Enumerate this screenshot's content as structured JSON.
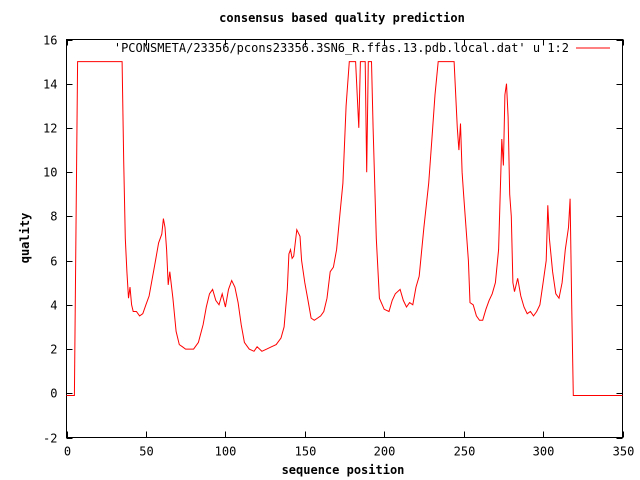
{
  "chart_data": {
    "type": "line",
    "title": "consensus based quality prediction",
    "xlabel": "sequence position",
    "ylabel": "quality",
    "xlim": [
      0,
      350
    ],
    "ylim": [
      -2,
      16
    ],
    "xticks": [
      0,
      50,
      100,
      150,
      200,
      250,
      300,
      350
    ],
    "yticks": [
      -2,
      0,
      2,
      4,
      6,
      8,
      10,
      12,
      14,
      16
    ],
    "grid": false,
    "legend_position": "top-right",
    "series": [
      {
        "name": "'PCONSMETA/23356/pcons23356.3SN6_R.ffas.13.pdb.local.dat' u 1:2",
        "color": "#ff0000",
        "points": [
          [
            0,
            -0.1
          ],
          [
            5,
            -0.1
          ],
          [
            6,
            7.5
          ],
          [
            7,
            15
          ],
          [
            12,
            15
          ],
          [
            20,
            15
          ],
          [
            28,
            15
          ],
          [
            35,
            15
          ],
          [
            36,
            10.5
          ],
          [
            37,
            7
          ],
          [
            38,
            5.5
          ],
          [
            39,
            4.3
          ],
          [
            40,
            4.8
          ],
          [
            41,
            4.0
          ],
          [
            42,
            3.7
          ],
          [
            44,
            3.7
          ],
          [
            46,
            3.5
          ],
          [
            48,
            3.6
          ],
          [
            50,
            4.0
          ],
          [
            52,
            4.4
          ],
          [
            54,
            5.2
          ],
          [
            56,
            6.0
          ],
          [
            58,
            6.8
          ],
          [
            60,
            7.2
          ],
          [
            61,
            7.9
          ],
          [
            62,
            7.5
          ],
          [
            63,
            6.5
          ],
          [
            64,
            4.9
          ],
          [
            65,
            5.5
          ],
          [
            67,
            4.3
          ],
          [
            69,
            2.8
          ],
          [
            71,
            2.2
          ],
          [
            73,
            2.1
          ],
          [
            75,
            2.0
          ],
          [
            78,
            2.0
          ],
          [
            80,
            2.0
          ],
          [
            83,
            2.3
          ],
          [
            86,
            3.1
          ],
          [
            88,
            3.9
          ],
          [
            90,
            4.5
          ],
          [
            92,
            4.7
          ],
          [
            94,
            4.2
          ],
          [
            96,
            4.0
          ],
          [
            98,
            4.5
          ],
          [
            100,
            3.9
          ],
          [
            102,
            4.7
          ],
          [
            104,
            5.1
          ],
          [
            106,
            4.8
          ],
          [
            108,
            4.1
          ],
          [
            110,
            3.1
          ],
          [
            112,
            2.3
          ],
          [
            115,
            2.0
          ],
          [
            118,
            1.9
          ],
          [
            120,
            2.1
          ],
          [
            123,
            1.9
          ],
          [
            126,
            2.0
          ],
          [
            129,
            2.1
          ],
          [
            132,
            2.2
          ],
          [
            135,
            2.5
          ],
          [
            137,
            3.0
          ],
          [
            139,
            4.7
          ],
          [
            140,
            6.3
          ],
          [
            141,
            6.5
          ],
          [
            142,
            6.1
          ],
          [
            143,
            6.2
          ],
          [
            145,
            7.4
          ],
          [
            147,
            7.1
          ],
          [
            148,
            6.0
          ],
          [
            150,
            5.0
          ],
          [
            152,
            4.2
          ],
          [
            154,
            3.4
          ],
          [
            156,
            3.3
          ],
          [
            158,
            3.4
          ],
          [
            160,
            3.5
          ],
          [
            162,
            3.7
          ],
          [
            164,
            4.3
          ],
          [
            166,
            5.5
          ],
          [
            168,
            5.7
          ],
          [
            170,
            6.5
          ],
          [
            172,
            8.0
          ],
          [
            174,
            9.5
          ],
          [
            176,
            13.0
          ],
          [
            178,
            15.0
          ],
          [
            182,
            15.0
          ],
          [
            184,
            12.0
          ],
          [
            185,
            15.0
          ],
          [
            188,
            15.0
          ],
          [
            189,
            10.0
          ],
          [
            190,
            15.0
          ],
          [
            192,
            15.0
          ],
          [
            193,
            12.0
          ],
          [
            195,
            7.0
          ],
          [
            197,
            4.3
          ],
          [
            200,
            3.8
          ],
          [
            203,
            3.7
          ],
          [
            205,
            4.2
          ],
          [
            207,
            4.5
          ],
          [
            210,
            4.7
          ],
          [
            212,
            4.2
          ],
          [
            214,
            3.9
          ],
          [
            216,
            4.1
          ],
          [
            218,
            4.0
          ],
          [
            220,
            4.8
          ],
          [
            222,
            5.3
          ],
          [
            225,
            7.5
          ],
          [
            228,
            9.5
          ],
          [
            230,
            11.5
          ],
          [
            232,
            13.5
          ],
          [
            234,
            15.0
          ],
          [
            236,
            15.0
          ],
          [
            240,
            15.0
          ],
          [
            244,
            15.0
          ],
          [
            246,
            12.0
          ],
          [
            247,
            11.0
          ],
          [
            248,
            12.2
          ],
          [
            249,
            10.0
          ],
          [
            250,
            9.0
          ],
          [
            252,
            7.0
          ],
          [
            253,
            6.0
          ],
          [
            254,
            4.1
          ],
          [
            256,
            4.0
          ],
          [
            258,
            3.5
          ],
          [
            260,
            3.3
          ],
          [
            262,
            3.3
          ],
          [
            264,
            3.8
          ],
          [
            266,
            4.2
          ],
          [
            268,
            4.5
          ],
          [
            270,
            5.0
          ],
          [
            272,
            6.5
          ],
          [
            273,
            9.0
          ],
          [
            274,
            11.5
          ],
          [
            275,
            10.3
          ],
          [
            276,
            13.5
          ],
          [
            277,
            14.0
          ],
          [
            278,
            12.5
          ],
          [
            279,
            9.0
          ],
          [
            280,
            8.0
          ],
          [
            281,
            5.0
          ],
          [
            282,
            4.6
          ],
          [
            284,
            5.2
          ],
          [
            286,
            4.4
          ],
          [
            288,
            3.9
          ],
          [
            290,
            3.6
          ],
          [
            292,
            3.7
          ],
          [
            294,
            3.5
          ],
          [
            296,
            3.7
          ],
          [
            298,
            4.0
          ],
          [
            300,
            5.0
          ],
          [
            302,
            6.0
          ],
          [
            303,
            8.5
          ],
          [
            304,
            7.0
          ],
          [
            306,
            5.5
          ],
          [
            308,
            4.5
          ],
          [
            310,
            4.3
          ],
          [
            312,
            5.0
          ],
          [
            314,
            6.5
          ],
          [
            316,
            7.5
          ],
          [
            317,
            8.8
          ],
          [
            318,
            4.0
          ],
          [
            319,
            -0.1
          ],
          [
            325,
            -0.1
          ],
          [
            340,
            -0.1
          ],
          [
            350,
            -0.1
          ]
        ]
      }
    ]
  }
}
